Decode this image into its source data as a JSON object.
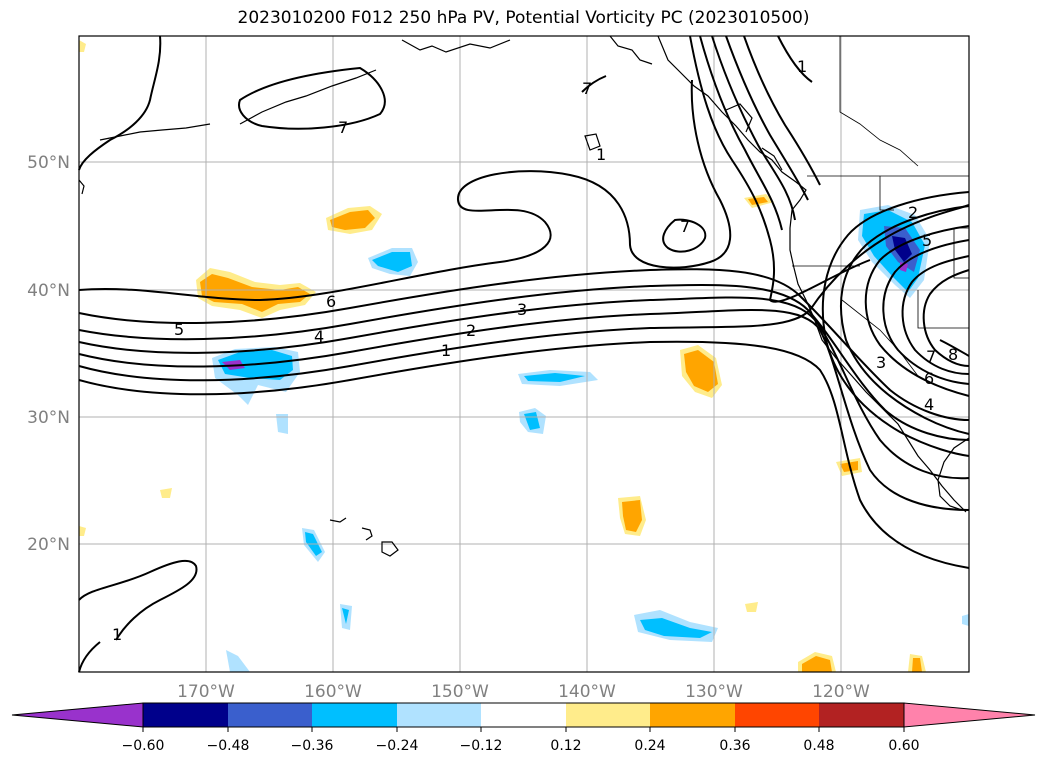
{
  "title": "2023010200 F012 250 hPa PV, Potential Vorticity PC (2023010500)",
  "map": {
    "lon_labels": [
      "170°W",
      "160°W",
      "150°W",
      "140°W",
      "130°W",
      "120°W"
    ],
    "lat_labels": [
      "50°N",
      "40°N",
      "30°N",
      "20°N"
    ],
    "contour_labels": [
      "1",
      "2",
      "3",
      "4",
      "5",
      "6",
      "7",
      "7",
      "7",
      "1",
      "1",
      "2",
      "3",
      "4",
      "5",
      "6",
      "7",
      "8",
      "1"
    ]
  },
  "colorbar": {
    "tick_labels": [
      "−0.60",
      "−0.48",
      "−0.36",
      "−0.24",
      "−0.12",
      "0.12",
      "0.24",
      "0.36",
      "0.48",
      "0.60"
    ],
    "colors": [
      "#9932cc",
      "#00008b",
      "#3a5fcd",
      "#00bfff",
      "#b0e2ff",
      "#ffffff",
      "#ffec8b",
      "#ffa500",
      "#ff4500",
      "#b22222",
      "#ff82ab"
    ]
  }
}
